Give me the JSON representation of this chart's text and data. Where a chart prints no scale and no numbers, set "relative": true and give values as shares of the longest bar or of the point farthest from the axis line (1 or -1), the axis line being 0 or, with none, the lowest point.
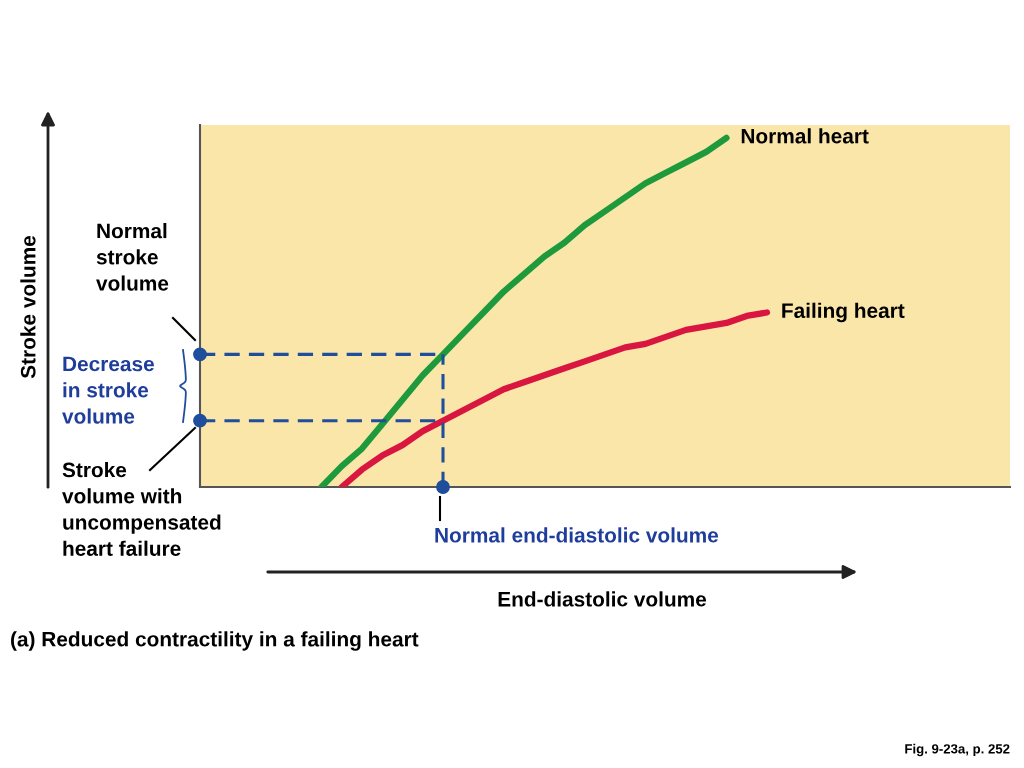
{
  "chart_data": {
    "type": "line",
    "relative": true,
    "title": "(a) Reduced contractility in a failing heart",
    "categories": [
      null,
      null,
      null,
      null,
      null,
      null,
      null,
      null,
      null,
      null,
      null,
      null,
      null,
      null,
      null,
      null,
      null,
      null,
      null,
      null,
      null,
      null,
      null,
      null,
      null,
      null,
      null,
      null,
      null,
      null,
      null,
      null,
      null,
      null,
      null,
      null,
      null,
      null,
      null,
      null,
      null
    ],
    "series": [
      {
        "name": "Normal heart",
        "color": "#1e9a3c",
        "values": [
          null,
          null,
          null,
          null,
          null,
          null,
          0,
          0.06,
          0.11,
          0.18,
          0.25,
          0.32,
          0.38,
          0.44,
          0.5,
          0.56,
          0.61,
          0.66,
          0.7,
          0.75,
          0.79,
          0.83,
          0.87,
          0.9,
          0.93,
          0.96,
          1.0,
          null,
          null,
          null,
          null,
          null,
          null,
          null,
          null,
          null,
          null,
          null,
          null,
          null,
          null
        ]
      },
      {
        "name": "Failing heart",
        "color": "#d9163f",
        "values": [
          null,
          null,
          null,
          null,
          null,
          null,
          null,
          0,
          0.05,
          0.09,
          0.12,
          0.16,
          0.19,
          0.22,
          0.25,
          0.28,
          0.3,
          0.32,
          0.34,
          0.36,
          0.38,
          0.4,
          0.41,
          0.43,
          0.45,
          0.46,
          0.47,
          0.49,
          0.5,
          null,
          null,
          null,
          null,
          null,
          null,
          null,
          null,
          null,
          null,
          null,
          null
        ]
      }
    ],
    "ref_lines": [
      {
        "axis": "y",
        "value": 0.38,
        "color": "#1f4e9c",
        "line_style": "dashed"
      },
      {
        "axis": "y",
        "value": 0.19,
        "color": "#1f4e9c",
        "line_style": "dashed"
      }
    ],
    "annotations": [
      "Stroke volume",
      "End-diastolic volume",
      "Normal\nstroke\nvolume",
      "Decrease\nin stroke\nvolume",
      "Stroke\nvolume with\nuncompensated\nheart failure",
      "Normal end-diastolic volume",
      "Fig. 9-23a, p. 252"
    ],
    "legend": false
  }
}
